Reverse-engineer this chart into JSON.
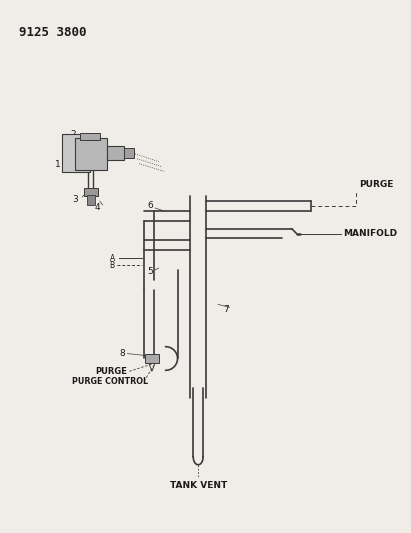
{
  "title": "9125 3800",
  "bg_color": "#f0ede8",
  "line_color": "#3a3a3a",
  "label_color": "#1a1a1a",
  "purge_label": "PURGE",
  "manifold_label": "MANIFOLD",
  "tank_vent_label": "TANK VENT",
  "purge_bottom_label": "PURGE",
  "purge_control_label": "PURGE CONTROL",
  "figsize": [
    4.11,
    5.33
  ],
  "dpi": 100
}
